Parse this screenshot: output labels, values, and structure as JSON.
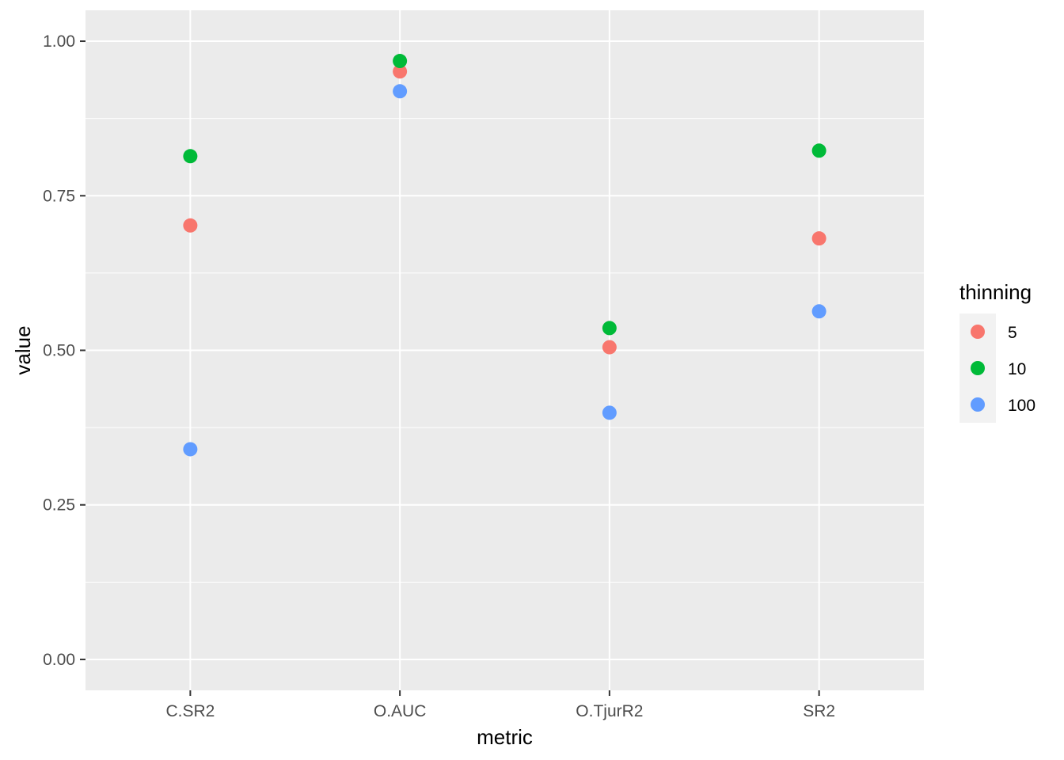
{
  "chart_data": {
    "type": "scatter",
    "title": "",
    "xlabel": "metric",
    "ylabel": "value",
    "categories": [
      "C.SR2",
      "O.AUC",
      "O.TjurR2",
      "SR2"
    ],
    "ylim": [
      -0.05,
      1.05
    ],
    "yticks": [
      0.0,
      0.25,
      0.5,
      0.75,
      1.0
    ],
    "ytick_labels": [
      "0.00",
      "0.25",
      "0.50",
      "0.75",
      "1.00"
    ],
    "grid": true,
    "legend": {
      "title": "thinning",
      "placement": "right"
    },
    "series": [
      {
        "name": "5",
        "color": "#F8766D",
        "values": [
          0.702,
          0.951,
          0.505,
          0.681
        ]
      },
      {
        "name": "10",
        "color": "#00BA38",
        "values": [
          0.814,
          0.968,
          0.536,
          0.823
        ]
      },
      {
        "name": "100",
        "color": "#619CFF",
        "values": [
          0.34,
          0.919,
          0.399,
          0.563
        ]
      }
    ]
  }
}
